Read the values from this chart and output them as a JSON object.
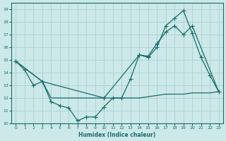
{
  "xlabel": "Humidex (Indice chaleur)",
  "bg_color": "#cce8e8",
  "grid_color": "#afd4d4",
  "line_color": "#1a6b6b",
  "xlim": [
    -0.5,
    23.5
  ],
  "ylim": [
    10,
    19.5
  ],
  "xticks": [
    0,
    1,
    2,
    3,
    4,
    5,
    6,
    7,
    8,
    9,
    10,
    11,
    12,
    13,
    14,
    15,
    16,
    17,
    18,
    19,
    20,
    21,
    22,
    23
  ],
  "yticks": [
    10,
    11,
    12,
    13,
    14,
    15,
    16,
    17,
    18,
    19
  ],
  "line1_x": [
    0,
    1,
    2,
    3,
    4,
    5,
    6,
    7,
    8,
    9,
    10,
    11,
    12,
    13,
    14,
    15,
    16,
    17,
    18,
    19,
    20,
    21,
    22,
    23
  ],
  "line1_y": [
    14.9,
    14.2,
    13.0,
    13.3,
    11.7,
    11.4,
    11.2,
    10.2,
    10.5,
    10.5,
    11.3,
    12.0,
    12.0,
    13.5,
    15.4,
    15.2,
    16.0,
    17.7,
    18.3,
    18.9,
    17.1,
    15.2,
    13.8,
    12.5
  ],
  "line2_x": [
    0,
    3,
    10,
    14,
    15,
    16,
    17,
    18,
    19,
    20,
    23
  ],
  "line2_y": [
    14.9,
    13.3,
    12.0,
    15.4,
    15.3,
    16.3,
    17.2,
    17.7,
    17.0,
    17.7,
    12.5
  ],
  "line3_x": [
    0,
    3,
    4,
    9,
    10,
    11,
    12,
    13,
    14,
    15,
    16,
    17,
    18,
    19,
    20,
    21,
    22,
    23
  ],
  "line3_y": [
    14.9,
    13.3,
    12.0,
    12.0,
    12.0,
    12.0,
    12.0,
    12.0,
    12.0,
    12.1,
    12.2,
    12.3,
    12.3,
    12.3,
    12.4,
    12.4,
    12.4,
    12.5
  ]
}
